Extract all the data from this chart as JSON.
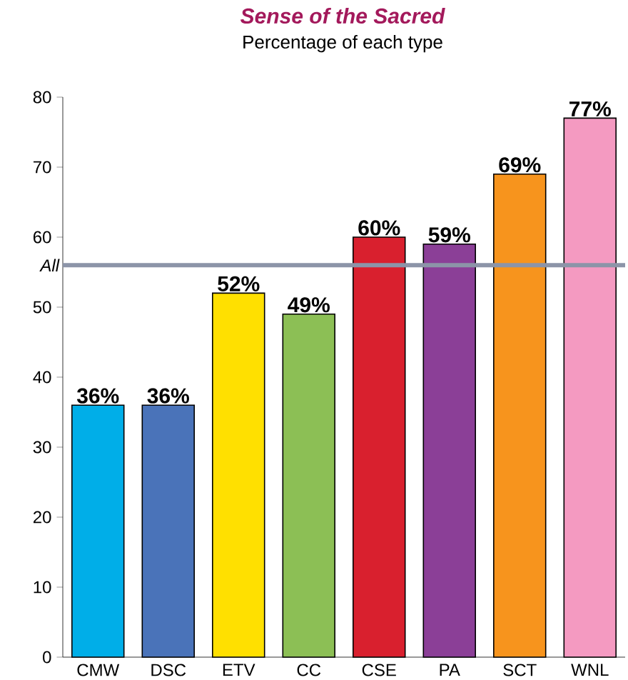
{
  "chart_data": {
    "type": "bar",
    "title": "Sense of the Sacred",
    "subtitle": "Percentage of each type",
    "categories": [
      "CMW",
      "DSC",
      "ETV",
      "CC",
      "CSE",
      "PA",
      "SCT",
      "WNL"
    ],
    "values": [
      36,
      36,
      52,
      49,
      60,
      59,
      69,
      77
    ],
    "value_labels": [
      "36%",
      "36%",
      "52%",
      "49%",
      "60%",
      "59%",
      "69%",
      "77%"
    ],
    "colors": [
      "#00aee8",
      "#4a73b9",
      "#ffe000",
      "#8cbf55",
      "#d9202e",
      "#8b3f97",
      "#f7941d",
      "#f49ac1"
    ],
    "ylim": [
      0,
      80
    ],
    "yticks": [
      0,
      10,
      20,
      30,
      40,
      50,
      60,
      70,
      80
    ],
    "grid": false,
    "ref_lines": [
      {
        "axis": "y",
        "value": 56,
        "label": "*All*",
        "color": "#8c94a8"
      }
    ]
  }
}
